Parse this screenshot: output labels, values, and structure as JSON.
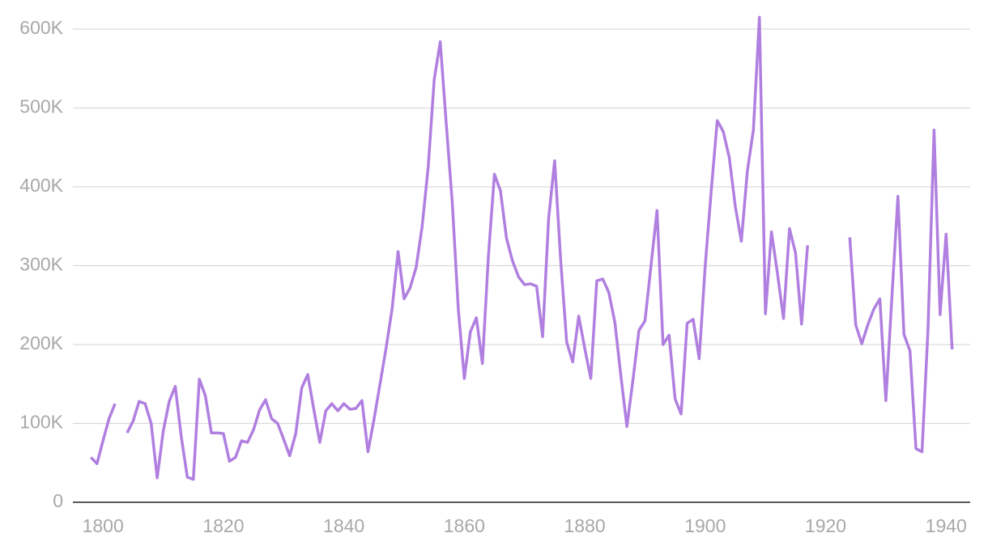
{
  "chart_data": {
    "type": "line",
    "x": [
      1798,
      1799,
      1800,
      1801,
      1802,
      1803,
      1804,
      1805,
      1806,
      1807,
      1808,
      1809,
      1810,
      1811,
      1812,
      1813,
      1814,
      1815,
      1816,
      1817,
      1818,
      1819,
      1820,
      1821,
      1822,
      1823,
      1824,
      1825,
      1826,
      1827,
      1828,
      1829,
      1830,
      1831,
      1832,
      1833,
      1834,
      1835,
      1836,
      1837,
      1838,
      1839,
      1840,
      1841,
      1842,
      1843,
      1844,
      1845,
      1846,
      1847,
      1848,
      1849,
      1850,
      1851,
      1852,
      1853,
      1854,
      1855,
      1856,
      1857,
      1858,
      1859,
      1860,
      1861,
      1862,
      1863,
      1864,
      1865,
      1866,
      1867,
      1868,
      1869,
      1870,
      1871,
      1872,
      1873,
      1874,
      1875,
      1876,
      1877,
      1878,
      1879,
      1880,
      1881,
      1882,
      1883,
      1884,
      1885,
      1886,
      1887,
      1888,
      1889,
      1890,
      1891,
      1892,
      1893,
      1894,
      1895,
      1896,
      1897,
      1898,
      1899,
      1900,
      1901,
      1902,
      1903,
      1904,
      1905,
      1906,
      1907,
      1908,
      1909,
      1910,
      1911,
      1912,
      1913,
      1914,
      1915,
      1916,
      1917,
      1918,
      1919,
      1920,
      1921,
      1922,
      1923,
      1924,
      1925,
      1926,
      1927,
      1928,
      1929,
      1930,
      1931,
      1932,
      1933,
      1934,
      1935,
      1936,
      1937,
      1938,
      1939,
      1940,
      1941
    ],
    "series": [
      {
        "color": "#b07fe0",
        "values": [
          57000,
          49000,
          78000,
          106000,
          125000,
          null,
          88000,
          103000,
          128000,
          125000,
          100000,
          31000,
          90000,
          128000,
          147000,
          83000,
          32000,
          29000,
          156000,
          135000,
          88000,
          88000,
          87000,
          52000,
          57000,
          78000,
          76000,
          92000,
          117000,
          130000,
          106000,
          100000,
          80000,
          59000,
          87000,
          145000,
          162000,
          118000,
          76000,
          116000,
          125000,
          116000,
          125000,
          118000,
          119000,
          129000,
          64000,
          105000,
          150000,
          195000,
          245000,
          318000,
          258000,
          272000,
          298000,
          350000,
          425000,
          536000,
          584000,
          480000,
          380000,
          245000,
          157000,
          216000,
          234000,
          176000,
          312000,
          416000,
          395000,
          335000,
          306000,
          286000,
          276000,
          277000,
          274000,
          210000,
          360000,
          433000,
          307000,
          203000,
          178000,
          236000,
          195000,
          157000,
          281000,
          283000,
          266000,
          228000,
          160000,
          96000,
          155000,
          218000,
          230000,
          300000,
          370000,
          200000,
          212000,
          131000,
          112000,
          227000,
          232000,
          182000,
          300000,
          395000,
          484000,
          470000,
          437000,
          375000,
          331000,
          420000,
          472000,
          615000,
          239000,
          343000,
          290000,
          233000,
          347000,
          316000,
          226000,
          326000,
          null,
          null,
          null,
          null,
          null,
          null,
          336000,
          225000,
          201000,
          225000,
          245000,
          258000,
          129000,
          260000,
          388000,
          213000,
          192000,
          68000,
          64000,
          220000,
          472000,
          238000,
          340000,
          194000
        ]
      }
    ],
    "xlim": [
      1795,
      1944
    ],
    "xticks": [
      1800,
      1820,
      1840,
      1860,
      1880,
      1900,
      1920,
      1940
    ],
    "ylim": [
      0,
      600000
    ],
    "yticks": [
      {
        "value": 0,
        "label": "0"
      },
      {
        "value": 100000,
        "label": "100K"
      },
      {
        "value": 200000,
        "label": "200K"
      },
      {
        "value": 300000,
        "label": "300K"
      },
      {
        "value": 400000,
        "label": "400K"
      },
      {
        "value": 500000,
        "label": "500K"
      },
      {
        "value": 600000,
        "label": "600K"
      }
    ],
    "grid": true
  }
}
